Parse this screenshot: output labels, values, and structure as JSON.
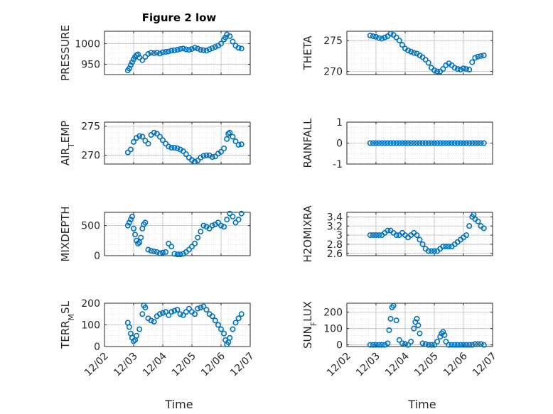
{
  "figure": {
    "title": "Figure 2 low",
    "marker_color": "#0072BD",
    "date_ticks": [
      "12/02",
      "12/03",
      "12/04",
      "12/05",
      "12/06",
      "12/07"
    ],
    "xlabel": "Time"
  },
  "chart_data": [
    {
      "type": "scatter",
      "ylabel": "PRESSURE",
      "ylim": [
        925,
        1030
      ],
      "yticks": [
        950,
        1000
      ],
      "x": [
        2.8,
        2.85,
        2.9,
        2.95,
        3.0,
        3.05,
        3.1,
        3.15,
        3.2,
        3.3,
        3.4,
        3.5,
        3.6,
        3.7,
        3.8,
        3.9,
        4.0,
        4.1,
        4.2,
        4.3,
        4.4,
        4.5,
        4.6,
        4.7,
        4.8,
        4.9,
        5.0,
        5.1,
        5.2,
        5.3,
        5.4,
        5.5,
        5.6,
        5.7,
        5.8,
        5.9,
        6.0,
        6.1,
        6.15,
        6.2,
        6.3,
        6.4,
        6.5,
        6.6,
        6.7
      ],
      "y": [
        935,
        940,
        948,
        955,
        962,
        968,
        972,
        974,
        966,
        960,
        968,
        975,
        978,
        977,
        978,
        976,
        979,
        980,
        981,
        983,
        984,
        985,
        987,
        988,
        986,
        985,
        987,
        990,
        988,
        985,
        984,
        983,
        986,
        989,
        992,
        995,
        1000,
        1010,
        1015,
        1022,
        1018,
        1005,
        995,
        990,
        988
      ]
    },
    {
      "type": "scatter",
      "ylabel": "THETA",
      "ylim": [
        269.5,
        276.5
      ],
      "yticks": [
        270,
        275
      ],
      "x": [
        2.8,
        2.9,
        3.0,
        3.1,
        3.2,
        3.3,
        3.4,
        3.5,
        3.6,
        3.7,
        3.8,
        3.9,
        4.0,
        4.1,
        4.2,
        4.3,
        4.4,
        4.5,
        4.6,
        4.7,
        4.8,
        4.9,
        5.0,
        5.1,
        5.2,
        5.3,
        5.4,
        5.5,
        5.6,
        5.7,
        5.8,
        5.9,
        6.0,
        6.1,
        6.2,
        6.3,
        6.4,
        6.5,
        6.6,
        6.7
      ],
      "y": [
        275.8,
        275.7,
        275.6,
        275.4,
        275.3,
        275.5,
        275.7,
        276.1,
        275.9,
        275.5,
        275.0,
        274.3,
        273.7,
        273.4,
        273.2,
        273.0,
        272.9,
        272.6,
        272.3,
        271.9,
        271.4,
        270.6,
        270.2,
        270.0,
        270.0,
        270.4,
        271.0,
        271.3,
        271.0,
        270.6,
        270.4,
        270.3,
        270.5,
        270.4,
        270.3,
        271.5,
        272.2,
        272.4,
        272.5,
        272.6
      ]
    },
    {
      "type": "scatter",
      "ylabel": "AIR_TEMP",
      "ylim": [
        268.5,
        275.7
      ],
      "yticks": [
        270,
        275
      ],
      "x": [
        2.8,
        2.9,
        3.0,
        3.1,
        3.2,
        3.3,
        3.4,
        3.5,
        3.6,
        3.7,
        3.8,
        3.9,
        4.0,
        4.1,
        4.2,
        4.3,
        4.4,
        4.5,
        4.6,
        4.7,
        4.8,
        4.9,
        5.0,
        5.1,
        5.2,
        5.3,
        5.4,
        5.5,
        5.6,
        5.7,
        5.8,
        5.9,
        6.0,
        6.1,
        6.2,
        6.25,
        6.3,
        6.4,
        6.5,
        6.6,
        6.7
      ],
      "y": [
        270.5,
        271.0,
        272.3,
        273.0,
        273.3,
        273.2,
        272.5,
        272.0,
        273.5,
        273.9,
        273.7,
        273.2,
        272.6,
        272.0,
        271.5,
        271.3,
        271.3,
        271.2,
        271.0,
        270.7,
        270.2,
        269.6,
        269.2,
        268.9,
        269.1,
        269.6,
        269.9,
        270.0,
        270.0,
        269.7,
        269.8,
        270.3,
        270.6,
        271.2,
        272.8,
        273.7,
        273.9,
        273.2,
        272.4,
        271.8,
        271.9
      ]
    },
    {
      "type": "scatter",
      "ylabel": "RAINFALL",
      "ylim": [
        -1,
        1
      ],
      "yticks": [
        -1,
        0,
        1
      ],
      "x": [
        2.8,
        2.9,
        3.0,
        3.1,
        3.2,
        3.3,
        3.4,
        3.5,
        3.6,
        3.7,
        3.8,
        3.9,
        4.0,
        4.1,
        4.2,
        4.3,
        4.4,
        4.5,
        4.6,
        4.7,
        4.8,
        4.9,
        5.0,
        5.1,
        5.2,
        5.3,
        5.4,
        5.5,
        5.6,
        5.7,
        5.8,
        5.9,
        6.0,
        6.1,
        6.2,
        6.3,
        6.4,
        6.5,
        6.6,
        6.7
      ],
      "y": [
        0,
        0,
        0,
        0,
        0,
        0,
        0,
        0,
        0,
        0,
        0,
        0,
        0,
        0,
        0,
        0,
        0,
        0,
        0,
        0,
        0,
        0,
        0,
        0,
        0,
        0,
        0,
        0,
        0,
        0,
        0,
        0,
        0,
        0,
        0,
        0,
        0,
        0,
        0,
        0
      ]
    },
    {
      "type": "scatter",
      "ylabel": "MIXDEPTH",
      "ylim": [
        0,
        720
      ],
      "yticks": [
        0,
        500
      ],
      "x": [
        2.8,
        2.85,
        2.9,
        2.95,
        3.0,
        3.05,
        3.1,
        3.15,
        3.2,
        3.25,
        3.3,
        3.35,
        3.4,
        3.5,
        3.6,
        3.7,
        3.8,
        3.9,
        4.0,
        4.1,
        4.2,
        4.3,
        4.4,
        4.5,
        4.6,
        4.7,
        4.8,
        4.9,
        5.0,
        5.1,
        5.2,
        5.3,
        5.4,
        5.5,
        5.6,
        5.7,
        5.8,
        5.9,
        6.0,
        6.1,
        6.2,
        6.3,
        6.4,
        6.5,
        6.6,
        6.7
      ],
      "y": [
        500,
        550,
        600,
        650,
        450,
        350,
        250,
        200,
        220,
        300,
        450,
        520,
        550,
        100,
        80,
        70,
        60,
        40,
        50,
        60,
        200,
        150,
        30,
        20,
        20,
        30,
        60,
        100,
        150,
        200,
        300,
        400,
        500,
        480,
        450,
        500,
        520,
        550,
        500,
        480,
        600,
        700,
        650,
        550,
        600,
        700
      ]
    },
    {
      "type": "scatter",
      "ylabel": "H2OMIXRA",
      "ylim": [
        2.55,
        3.5
      ],
      "yticks": [
        2.6,
        2.8,
        3.0,
        3.2,
        3.4
      ],
      "ytick_labels": [
        "2.6",
        "2.8",
        "3",
        "3.2",
        "3.4"
      ],
      "x": [
        2.8,
        2.9,
        3.0,
        3.1,
        3.2,
        3.3,
        3.4,
        3.5,
        3.6,
        3.7,
        3.8,
        3.9,
        4.0,
        4.1,
        4.2,
        4.3,
        4.4,
        4.5,
        4.6,
        4.7,
        4.8,
        4.9,
        5.0,
        5.1,
        5.2,
        5.3,
        5.4,
        5.5,
        5.6,
        5.7,
        5.8,
        5.9,
        6.0,
        6.1,
        6.2,
        6.3,
        6.35,
        6.4,
        6.5,
        6.6,
        6.7
      ],
      "y": [
        3.0,
        3.0,
        3.0,
        3.0,
        3.0,
        3.05,
        3.1,
        3.1,
        3.05,
        3.0,
        3.0,
        3.05,
        3.0,
        2.95,
        3.0,
        3.05,
        3.0,
        2.9,
        2.8,
        2.7,
        2.65,
        2.65,
        2.65,
        2.65,
        2.7,
        2.75,
        2.75,
        2.75,
        2.75,
        2.8,
        2.85,
        2.9,
        2.95,
        3.0,
        3.2,
        3.4,
        3.45,
        3.35,
        3.3,
        3.2,
        3.15
      ]
    },
    {
      "type": "scatter",
      "ylabel": "TERR_MSL",
      "ylim": [
        0,
        200
      ],
      "yticks": [
        0,
        100,
        200
      ],
      "x": [
        2.8,
        2.85,
        2.9,
        2.95,
        3.0,
        3.05,
        3.1,
        3.2,
        3.3,
        3.35,
        3.4,
        3.5,
        3.6,
        3.7,
        3.8,
        3.9,
        4.0,
        4.1,
        4.2,
        4.3,
        4.4,
        4.5,
        4.6,
        4.7,
        4.8,
        4.9,
        5.0,
        5.1,
        5.2,
        5.3,
        5.4,
        5.5,
        5.6,
        5.7,
        5.8,
        5.9,
        6.0,
        6.1,
        6.15,
        6.2,
        6.25,
        6.3,
        6.4,
        6.5,
        6.6,
        6.7
      ],
      "y": [
        110,
        90,
        60,
        40,
        25,
        30,
        50,
        80,
        150,
        190,
        180,
        130,
        120,
        115,
        140,
        150,
        155,
        160,
        145,
        160,
        165,
        170,
        150,
        145,
        160,
        175,
        160,
        150,
        175,
        180,
        185,
        170,
        150,
        140,
        120,
        100,
        80,
        60,
        30,
        10,
        20,
        40,
        80,
        110,
        130,
        150
      ]
    },
    {
      "type": "scatter",
      "ylabel": "SUN_FLUX",
      "ylim": [
        -10,
        255
      ],
      "yticks": [
        0,
        100,
        200
      ],
      "x": [
        2.8,
        2.9,
        3.0,
        3.1,
        3.2,
        3.3,
        3.4,
        3.45,
        3.5,
        3.55,
        3.6,
        3.7,
        3.8,
        3.9,
        4.0,
        4.1,
        4.2,
        4.3,
        4.35,
        4.4,
        4.45,
        4.5,
        4.6,
        4.7,
        4.8,
        4.9,
        5.0,
        5.1,
        5.2,
        5.25,
        5.3,
        5.35,
        5.4,
        5.5,
        5.6,
        5.7,
        5.8,
        5.9,
        6.0,
        6.1,
        6.2,
        6.3,
        6.4,
        6.5,
        6.6,
        6.7
      ],
      "y": [
        0,
        0,
        0,
        0,
        0,
        0,
        10,
        90,
        160,
        230,
        240,
        150,
        30,
        10,
        5,
        0,
        20,
        100,
        140,
        160,
        120,
        70,
        10,
        5,
        0,
        0,
        0,
        20,
        50,
        70,
        80,
        60,
        20,
        0,
        0,
        0,
        0,
        0,
        0,
        0,
        0,
        0,
        5,
        5,
        5,
        0
      ]
    }
  ]
}
